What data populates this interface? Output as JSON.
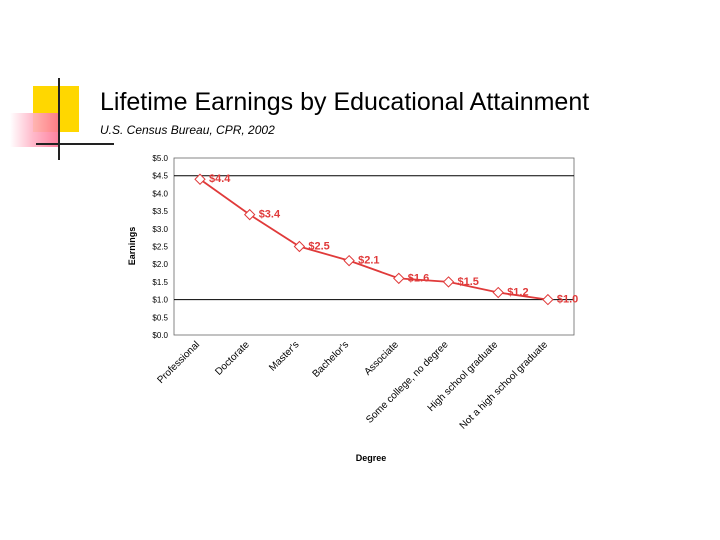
{
  "slide": {
    "title": "Lifetime Earnings by Educational Attainment",
    "subtitle": "U.S. Census Bureau, CPR, 2002"
  },
  "colors": {
    "series": "#e03a3a",
    "label": "#e03a3a",
    "accent_yellow": "#ffd700",
    "accent_pink": "#ff6f91"
  },
  "chart_data": {
    "type": "line",
    "title": "",
    "xlabel": "Degree",
    "ylabel": "Earnings",
    "ylim": [
      0,
      5
    ],
    "y_ticks": [
      {
        "value": 0.0,
        "label": "$0.0"
      },
      {
        "value": 0.5,
        "label": "$0.5"
      },
      {
        "value": 1.0,
        "label": "$1.0"
      },
      {
        "value": 1.5,
        "label": "$1.5"
      },
      {
        "value": 2.0,
        "label": "$2.0"
      },
      {
        "value": 2.5,
        "label": "$2.5"
      },
      {
        "value": 3.0,
        "label": "$3.0"
      },
      {
        "value": 3.5,
        "label": "$3.5"
      },
      {
        "value": 4.0,
        "label": "$4.0"
      },
      {
        "value": 4.5,
        "label": "$4.5"
      },
      {
        "value": 5.0,
        "label": "$5.0"
      }
    ],
    "gridlines": [
      1.0,
      4.5
    ],
    "categories": [
      "Professional",
      "Doctorate",
      "Master's",
      "Bachelor's",
      "Associate",
      "Some college, no degree",
      "High school graduate",
      "Not a high school graduate"
    ],
    "values": [
      4.4,
      3.4,
      2.5,
      2.1,
      1.6,
      1.5,
      1.2,
      1.0
    ],
    "data_labels": [
      "$4.4",
      "$3.4",
      "$2.5",
      "$2.1",
      "$1.6",
      "$1.5",
      "$1.2",
      "$1.0"
    ],
    "legend": "none",
    "marker": "diamond"
  }
}
